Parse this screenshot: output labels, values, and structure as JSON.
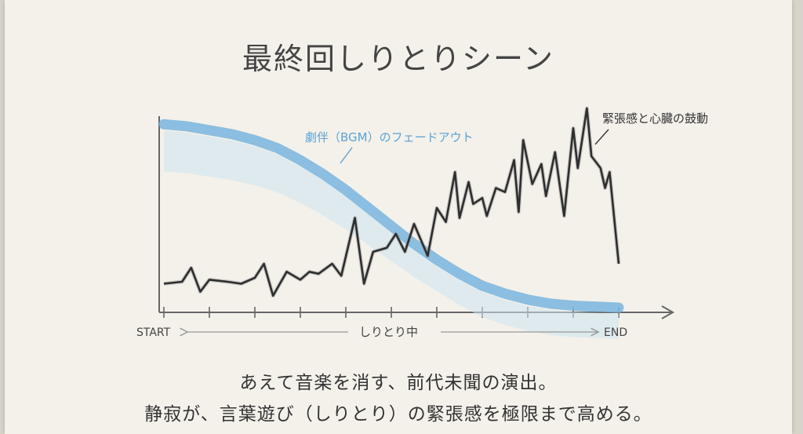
{
  "title": "最終回しりとりシーン",
  "caption_lines": [
    "あえて音楽を消す、前代未聞の演出。",
    "静寂が、言葉遊び（しりとり）の緊張感を極限まで高める。"
  ],
  "chart_data": {
    "type": "line",
    "title": "最終回しりとりシーン",
    "x_labels": {
      "start": "START",
      "middle": "しりとり中",
      "end": "END"
    },
    "xlim": [
      0,
      1
    ],
    "ylim": [
      0,
      1
    ],
    "grid": false,
    "series": [
      {
        "name": "劇伴（BGM）のフェードアウト",
        "color": "#6fb0dc",
        "x": [
          0.0,
          0.05,
          0.1,
          0.15,
          0.2,
          0.25,
          0.3,
          0.35,
          0.4,
          0.45,
          0.5,
          0.55,
          0.6,
          0.65,
          0.7,
          0.75,
          0.8,
          0.85,
          0.9,
          0.95,
          1.0
        ],
        "y": [
          0.92,
          0.91,
          0.89,
          0.87,
          0.84,
          0.8,
          0.74,
          0.67,
          0.59,
          0.5,
          0.41,
          0.32,
          0.24,
          0.17,
          0.11,
          0.07,
          0.04,
          0.02,
          0.01,
          0.005,
          0.0
        ]
      },
      {
        "name": "緊張感と心臓の鼓動",
        "color": "#2e2e2e",
        "x": [
          0.0,
          0.04,
          0.06,
          0.08,
          0.1,
          0.14,
          0.17,
          0.2,
          0.22,
          0.24,
          0.25,
          0.27,
          0.3,
          0.32,
          0.34,
          0.37,
          0.39,
          0.42,
          0.44,
          0.46,
          0.49,
          0.51,
          0.53,
          0.55,
          0.58,
          0.6,
          0.62,
          0.64,
          0.65,
          0.67,
          0.68,
          0.7,
          0.71,
          0.73,
          0.75,
          0.77,
          0.78,
          0.79,
          0.81,
          0.83,
          0.84,
          0.86,
          0.88,
          0.9,
          0.91,
          0.93,
          0.94,
          0.96,
          0.97,
          0.98,
          1.0
        ],
        "y": [
          0.12,
          0.13,
          0.2,
          0.08,
          0.14,
          0.13,
          0.12,
          0.15,
          0.22,
          0.06,
          0.1,
          0.18,
          0.14,
          0.18,
          0.17,
          0.22,
          0.16,
          0.45,
          0.12,
          0.28,
          0.3,
          0.37,
          0.28,
          0.42,
          0.26,
          0.5,
          0.43,
          0.68,
          0.45,
          0.63,
          0.52,
          0.55,
          0.46,
          0.6,
          0.58,
          0.74,
          0.48,
          0.84,
          0.62,
          0.72,
          0.56,
          0.78,
          0.46,
          0.9,
          0.7,
          1.0,
          0.76,
          0.7,
          0.6,
          0.68,
          0.22
        ]
      }
    ],
    "ticks_x": [
      0.0,
      0.1,
      0.2,
      0.3,
      0.4,
      0.5,
      0.6,
      0.7,
      0.8,
      0.9,
      1.0
    ]
  }
}
